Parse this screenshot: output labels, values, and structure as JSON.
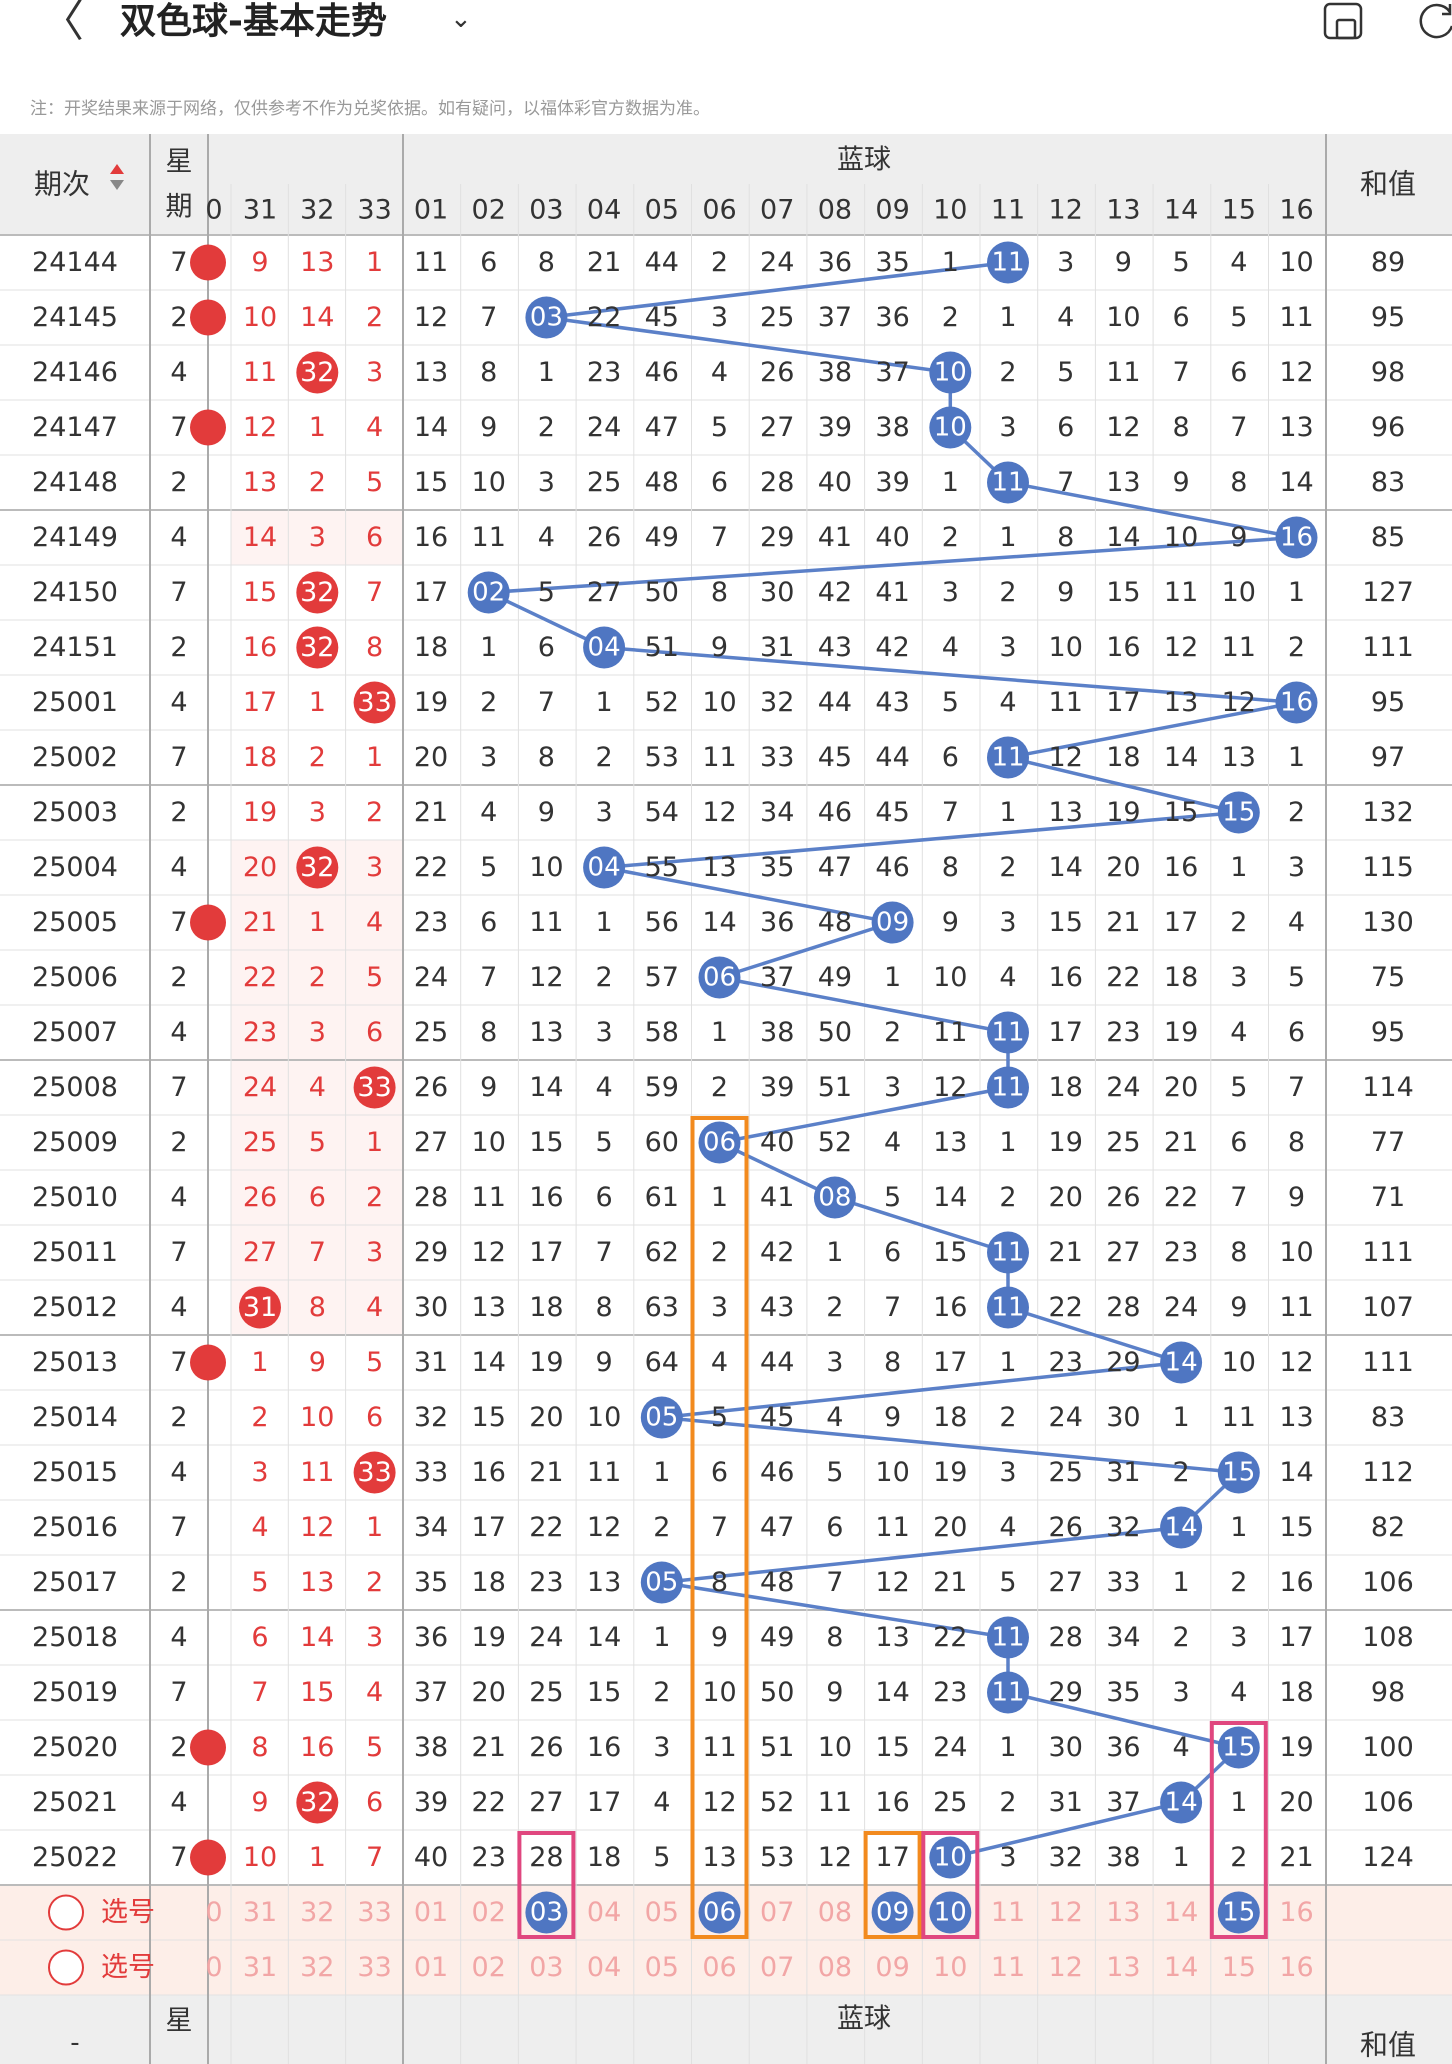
{
  "header": {
    "back_glyph": "〈",
    "title": "双色球-基本走势",
    "caret": "⌄"
  },
  "note": "注：开奖结果来源于网络，仅供参考不作为兑奖依据。如有疑问，以福体彩官方数据为准。",
  "table": {
    "issue_header": "期次",
    "week_header_1": "星",
    "week_header_2": "期",
    "blue_group": "蓝球",
    "sum_header": "和值",
    "red_partial_label": "0",
    "red_cols": [
      "31",
      "32",
      "33"
    ],
    "blue_cols": [
      "01",
      "02",
      "03",
      "04",
      "05",
      "06",
      "07",
      "08",
      "09",
      "10",
      "11",
      "12",
      "13",
      "14",
      "15",
      "16"
    ],
    "rows": [
      {
        "issue": "24144",
        "week": "7",
        "edge": true,
        "red": [
          9,
          13,
          1
        ],
        "blue": [
          11,
          6,
          8,
          21,
          44,
          2,
          24,
          36,
          35,
          1,
          "B",
          3,
          9,
          5,
          4,
          10
        ],
        "sum": "89"
      },
      {
        "issue": "24145",
        "week": "2",
        "edge": true,
        "red": [
          10,
          14,
          2
        ],
        "blue": [
          12,
          7,
          "B",
          22,
          45,
          3,
          25,
          37,
          36,
          2,
          1,
          4,
          10,
          6,
          5,
          11
        ],
        "sum": "95"
      },
      {
        "issue": "24146",
        "week": "4",
        "edge": false,
        "red": [
          11,
          "H",
          3
        ],
        "blue": [
          13,
          8,
          1,
          23,
          46,
          4,
          26,
          38,
          37,
          "B",
          2,
          5,
          11,
          7,
          6,
          12
        ],
        "sum": "98"
      },
      {
        "issue": "24147",
        "week": "7",
        "edge": true,
        "red": [
          12,
          1,
          4
        ],
        "blue": [
          14,
          9,
          2,
          24,
          47,
          5,
          27,
          39,
          38,
          "B",
          3,
          6,
          12,
          8,
          7,
          13
        ],
        "sum": "96"
      },
      {
        "issue": "24148",
        "week": "2",
        "edge": false,
        "red": [
          13,
          2,
          5
        ],
        "blue": [
          15,
          10,
          3,
          25,
          48,
          6,
          28,
          40,
          39,
          1,
          "B",
          7,
          13,
          9,
          8,
          14
        ],
        "sum": "83"
      },
      {
        "issue": "24149",
        "week": "4",
        "edge": false,
        "red": [
          14,
          3,
          6
        ],
        "blue": [
          16,
          11,
          4,
          26,
          49,
          7,
          29,
          41,
          40,
          2,
          1,
          8,
          14,
          10,
          9,
          "B"
        ],
        "sum": "85"
      },
      {
        "issue": "24150",
        "week": "7",
        "edge": false,
        "red": [
          15,
          "H",
          7
        ],
        "blue": [
          17,
          "B",
          5,
          27,
          50,
          8,
          30,
          42,
          41,
          3,
          2,
          9,
          15,
          11,
          10,
          1
        ],
        "sum": "127"
      },
      {
        "issue": "24151",
        "week": "2",
        "edge": false,
        "red": [
          16,
          "H",
          8
        ],
        "blue": [
          18,
          1,
          6,
          "B",
          51,
          9,
          31,
          43,
          42,
          4,
          3,
          10,
          16,
          12,
          11,
          2
        ],
        "sum": "111"
      },
      {
        "issue": "25001",
        "week": "4",
        "edge": false,
        "red": [
          17,
          1,
          "H"
        ],
        "blue": [
          19,
          2,
          7,
          1,
          52,
          10,
          32,
          44,
          43,
          5,
          4,
          11,
          17,
          13,
          12,
          "B"
        ],
        "sum": "95"
      },
      {
        "issue": "25002",
        "week": "7",
        "edge": false,
        "red": [
          18,
          2,
          1
        ],
        "blue": [
          20,
          3,
          8,
          2,
          53,
          11,
          33,
          45,
          44,
          6,
          "B",
          12,
          18,
          14,
          13,
          1
        ],
        "sum": "97"
      },
      {
        "issue": "25003",
        "week": "2",
        "edge": false,
        "red": [
          19,
          3,
          2
        ],
        "blue": [
          21,
          4,
          9,
          3,
          54,
          12,
          34,
          46,
          45,
          7,
          1,
          13,
          19,
          15,
          "B",
          2
        ],
        "sum": "132"
      },
      {
        "issue": "25004",
        "week": "4",
        "edge": false,
        "red": [
          20,
          "H",
          3
        ],
        "blue": [
          22,
          5,
          10,
          "B",
          55,
          13,
          35,
          47,
          46,
          8,
          2,
          14,
          20,
          16,
          1,
          3
        ],
        "sum": "115"
      },
      {
        "issue": "25005",
        "week": "7",
        "edge": true,
        "red": [
          21,
          1,
          4
        ],
        "blue": [
          23,
          6,
          11,
          1,
          56,
          14,
          36,
          48,
          "B",
          9,
          3,
          15,
          21,
          17,
          2,
          4
        ],
        "sum": "130"
      },
      {
        "issue": "25006",
        "week": "2",
        "edge": false,
        "red": [
          22,
          2,
          5
        ],
        "blue": [
          24,
          7,
          12,
          2,
          57,
          "B",
          37,
          49,
          1,
          10,
          4,
          16,
          22,
          18,
          3,
          5
        ],
        "sum": "75"
      },
      {
        "issue": "25007",
        "week": "4",
        "edge": false,
        "red": [
          23,
          3,
          6
        ],
        "blue": [
          25,
          8,
          13,
          3,
          58,
          1,
          38,
          50,
          2,
          11,
          "B",
          17,
          23,
          19,
          4,
          6
        ],
        "sum": "95"
      },
      {
        "issue": "25008",
        "week": "7",
        "edge": false,
        "red": [
          24,
          4,
          "H"
        ],
        "blue": [
          26,
          9,
          14,
          4,
          59,
          2,
          39,
          51,
          3,
          12,
          "B",
          18,
          24,
          20,
          5,
          7
        ],
        "sum": "114"
      },
      {
        "issue": "25009",
        "week": "2",
        "edge": false,
        "red": [
          25,
          5,
          1
        ],
        "blue": [
          27,
          10,
          15,
          5,
          60,
          "B",
          40,
          52,
          4,
          13,
          1,
          19,
          25,
          21,
          6,
          8
        ],
        "sum": "77"
      },
      {
        "issue": "25010",
        "week": "4",
        "edge": false,
        "red": [
          26,
          6,
          2
        ],
        "blue": [
          28,
          11,
          16,
          6,
          61,
          1,
          41,
          "B",
          5,
          14,
          2,
          20,
          26,
          22,
          7,
          9
        ],
        "sum": "71"
      },
      {
        "issue": "25011",
        "week": "7",
        "edge": false,
        "red": [
          27,
          7,
          3
        ],
        "blue": [
          29,
          12,
          17,
          7,
          62,
          2,
          42,
          1,
          6,
          15,
          "B",
          21,
          27,
          23,
          8,
          10
        ],
        "sum": "111"
      },
      {
        "issue": "25012",
        "week": "4",
        "edge": false,
        "red": [
          "H",
          8,
          4
        ],
        "blue": [
          30,
          13,
          18,
          8,
          63,
          3,
          43,
          2,
          7,
          16,
          "B",
          22,
          28,
          24,
          9,
          11
        ],
        "sum": "107"
      },
      {
        "issue": "25013",
        "week": "7",
        "edge": true,
        "red": [
          1,
          9,
          5
        ],
        "blue": [
          31,
          14,
          19,
          9,
          64,
          4,
          44,
          3,
          8,
          17,
          1,
          23,
          29,
          "B",
          10,
          12
        ],
        "sum": "111"
      },
      {
        "issue": "25014",
        "week": "2",
        "edge": false,
        "red": [
          2,
          10,
          6
        ],
        "blue": [
          32,
          15,
          20,
          10,
          "B",
          5,
          45,
          4,
          9,
          18,
          2,
          24,
          30,
          1,
          11,
          13
        ],
        "sum": "83"
      },
      {
        "issue": "25015",
        "week": "4",
        "edge": false,
        "red": [
          3,
          11,
          "H"
        ],
        "blue": [
          33,
          16,
          21,
          11,
          1,
          6,
          46,
          5,
          10,
          19,
          3,
          25,
          31,
          2,
          "B",
          14
        ],
        "sum": "112"
      },
      {
        "issue": "25016",
        "week": "7",
        "edge": false,
        "red": [
          4,
          12,
          1
        ],
        "blue": [
          34,
          17,
          22,
          12,
          2,
          7,
          47,
          6,
          11,
          20,
          4,
          26,
          32,
          "B",
          1,
          15
        ],
        "sum": "82"
      },
      {
        "issue": "25017",
        "week": "2",
        "edge": false,
        "red": [
          5,
          13,
          2
        ],
        "blue": [
          35,
          18,
          23,
          13,
          "B",
          8,
          48,
          7,
          12,
          21,
          5,
          27,
          33,
          1,
          2,
          16
        ],
        "sum": "106"
      },
      {
        "issue": "25018",
        "week": "4",
        "edge": false,
        "red": [
          6,
          14,
          3
        ],
        "blue": [
          36,
          19,
          24,
          14,
          1,
          9,
          49,
          8,
          13,
          22,
          "B",
          28,
          34,
          2,
          3,
          17
        ],
        "sum": "108"
      },
      {
        "issue": "25019",
        "week": "7",
        "edge": false,
        "red": [
          7,
          15,
          4
        ],
        "blue": [
          37,
          20,
          25,
          15,
          2,
          10,
          50,
          9,
          14,
          23,
          "B",
          29,
          35,
          3,
          4,
          18
        ],
        "sum": "98"
      },
      {
        "issue": "25020",
        "week": "2",
        "edge": true,
        "red": [
          8,
          16,
          5
        ],
        "blue": [
          38,
          21,
          26,
          16,
          3,
          11,
          51,
          10,
          15,
          24,
          1,
          30,
          36,
          4,
          "B",
          19
        ],
        "sum": "100"
      },
      {
        "issue": "25021",
        "week": "4",
        "edge": false,
        "red": [
          9,
          "H",
          6
        ],
        "blue": [
          39,
          22,
          27,
          17,
          4,
          12,
          52,
          11,
          16,
          25,
          2,
          31,
          37,
          "B",
          1,
          20
        ],
        "sum": "106"
      },
      {
        "issue": "25022",
        "week": "7",
        "edge": true,
        "red": [
          10,
          1,
          7
        ],
        "blue": [
          40,
          23,
          28,
          18,
          5,
          13,
          53,
          12,
          17,
          "B",
          3,
          32,
          38,
          1,
          2,
          21
        ],
        "sum": "124"
      }
    ],
    "select_label": "选号",
    "pick_blue_selected": [
      "03",
      "06",
      "09",
      "10",
      "15"
    ]
  },
  "colors": {
    "red": "#e23b3b",
    "blue_ball": "#4f76c2",
    "line_blue": "#5b80c8",
    "orange_box": "#f28a1e",
    "pink_box": "#e0477f",
    "pick_bg": "#fdeee8",
    "header_bg": "#eeeeee",
    "red_band": "#fde9e7"
  }
}
